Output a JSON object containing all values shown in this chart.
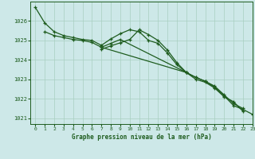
{
  "title": "Graphe pression niveau de la mer (hPa)",
  "bg_color": "#cde8e8",
  "grid_color": "#a8cfc0",
  "line_color": "#1e5c1e",
  "xlim": [
    -0.5,
    23
  ],
  "ylim": [
    1020.7,
    1027.0
  ],
  "yticks": [
    1021,
    1022,
    1023,
    1024,
    1025,
    1026
  ],
  "xticks": [
    0,
    1,
    2,
    3,
    4,
    5,
    6,
    7,
    8,
    9,
    10,
    11,
    12,
    13,
    14,
    15,
    16,
    17,
    18,
    19,
    20,
    21,
    22,
    23
  ],
  "s1_x": [
    0,
    1,
    2,
    3,
    4,
    5,
    6,
    7,
    8,
    9,
    10,
    11,
    12,
    13,
    14,
    15,
    16,
    17,
    18,
    19,
    20,
    21,
    22,
    23
  ],
  "s1_y": [
    1026.7,
    1025.9,
    1025.45,
    1025.25,
    1025.15,
    1025.05,
    1025.0,
    1024.75,
    1025.08,
    1025.35,
    1025.55,
    1025.45,
    1025.0,
    1024.85,
    1024.35,
    1023.75,
    1023.35,
    1023.1,
    1022.9,
    1022.6,
    1022.15,
    1021.65,
    1021.45,
    1021.2
  ],
  "s2_x": [
    1,
    2,
    3,
    4,
    5,
    6,
    7,
    16,
    17,
    18,
    19,
    20,
    21,
    22
  ],
  "s2_y": [
    1025.45,
    1025.25,
    1025.15,
    1025.05,
    1025.0,
    1024.9,
    1024.65,
    1023.35,
    1023.1,
    1022.9,
    1022.65,
    1022.2,
    1021.75,
    1021.5
  ],
  "s3_x": [
    7,
    8,
    9,
    16,
    17,
    18,
    19,
    20,
    21,
    22
  ],
  "s3_y": [
    1024.65,
    1024.85,
    1025.05,
    1023.35,
    1023.0,
    1022.85,
    1022.55,
    1022.1,
    1021.85,
    1021.35
  ],
  "s4_x": [
    7,
    8,
    9,
    10,
    11,
    12,
    13,
    14,
    15,
    16
  ],
  "s4_y": [
    1024.55,
    1024.72,
    1024.88,
    1025.05,
    1025.55,
    1025.3,
    1025.0,
    1024.5,
    1023.85,
    1023.35
  ]
}
